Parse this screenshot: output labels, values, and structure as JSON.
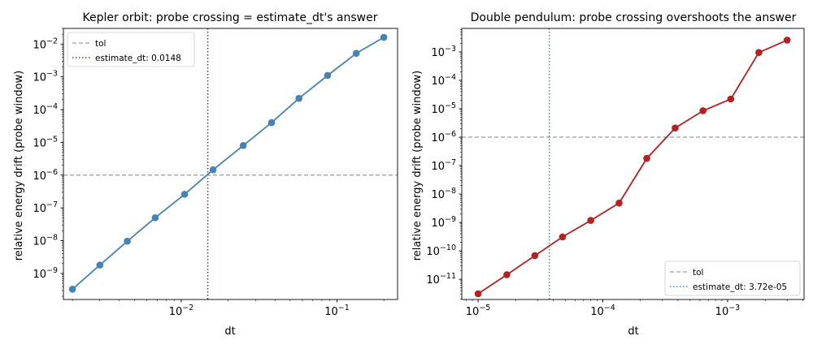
{
  "chart_data": [
    {
      "type": "line",
      "title": "Kepler orbit: probe crossing = estimate_dt's answer",
      "xlabel": "dt",
      "ylabel": "relative energy drift (probe window)",
      "xscale": "log",
      "yscale": "log",
      "xlim": [
        0.00175,
        0.245
      ],
      "ylim": [
        1.6e-10,
        0.03
      ],
      "xticks": [
        {
          "value": 0.01,
          "base": "10",
          "exp": "−2"
        },
        {
          "value": 0.1,
          "base": "10",
          "exp": "−1"
        }
      ],
      "yticks": [
        {
          "value": 1e-09,
          "base": "10",
          "exp": "−9"
        },
        {
          "value": 1e-08,
          "base": "10",
          "exp": "−8"
        },
        {
          "value": 1e-07,
          "base": "10",
          "exp": "−7"
        },
        {
          "value": 1e-06,
          "base": "10",
          "exp": "−6"
        },
        {
          "value": 1e-05,
          "base": "10",
          "exp": "−5"
        },
        {
          "value": 0.0001,
          "base": "10",
          "exp": "−4"
        },
        {
          "value": 0.001,
          "base": "10",
          "exp": "−3"
        },
        {
          "value": 0.01,
          "base": "10",
          "exp": "−2"
        }
      ],
      "series": [
        {
          "color": "#4682b4",
          "x": [
            0.002,
            0.003,
            0.0045,
            0.0068,
            0.0105,
            0.016,
            0.025,
            0.038,
            0.057,
            0.087,
            0.133,
            0.2
          ],
          "y": [
            3.3e-10,
            1.8e-09,
            9.6e-09,
            5e-08,
            2.6e-07,
            1.45e-06,
            8e-06,
            4e-05,
            0.00022,
            0.0011,
            0.0052,
            0.016
          ]
        }
      ],
      "hline": {
        "label": "tol",
        "value": 1e-06,
        "color": "#999999"
      },
      "vline": {
        "label": "estimate_dt: 0.0148",
        "value": 0.0148,
        "color": "#b22222"
      },
      "legend_position": "top-left",
      "grid": false
    },
    {
      "type": "line",
      "title": "Double pendulum: probe crossing overshoots the answer",
      "xlabel": "dt",
      "ylabel": "relative energy drift (probe window)",
      "xscale": "log",
      "yscale": "log",
      "xlim": [
        7.4e-06,
        0.0041
      ],
      "ylim": [
        1.95e-12,
        0.0067
      ],
      "xticks": [
        {
          "value": 1e-05,
          "base": "10",
          "exp": "−5"
        },
        {
          "value": 0.0001,
          "base": "10",
          "exp": "−4"
        },
        {
          "value": 0.001,
          "base": "10",
          "exp": "−3"
        }
      ],
      "yticks": [
        {
          "value": 1e-11,
          "base": "10",
          "exp": "−11"
        },
        {
          "value": 1e-10,
          "base": "10",
          "exp": "−10"
        },
        {
          "value": 1e-09,
          "base": "10",
          "exp": "−9"
        },
        {
          "value": 1e-08,
          "base": "10",
          "exp": "−8"
        },
        {
          "value": 1e-07,
          "base": "10",
          "exp": "−7"
        },
        {
          "value": 1e-06,
          "base": "10",
          "exp": "−6"
        },
        {
          "value": 1e-05,
          "base": "10",
          "exp": "−5"
        },
        {
          "value": 0.0001,
          "base": "10",
          "exp": "−4"
        },
        {
          "value": 0.001,
          "base": "10",
          "exp": "−3"
        }
      ],
      "series": [
        {
          "color": "#b22222",
          "x": [
            1e-05,
            1.7e-05,
            2.85e-05,
            4.75e-05,
            8e-05,
            0.000135,
            0.000225,
            0.00038,
            0.000635,
            0.00106,
            0.00178,
            0.003
          ],
          "y": [
            3.1e-12,
            1.45e-11,
            6.8e-11,
            3.1e-10,
            1.18e-09,
            4.8e-09,
            1.8e-07,
            2.1e-06,
            8.5e-06,
            2.2e-05,
            0.00095,
            0.0026
          ]
        }
      ],
      "hline": {
        "label": "tol",
        "value": 1e-06,
        "color": "#999999"
      },
      "vline": {
        "label": "estimate_dt: 3.72e-05",
        "value": 3.72e-05,
        "color": "#4682b4"
      },
      "legend_position": "bottom-right",
      "grid": false
    }
  ]
}
